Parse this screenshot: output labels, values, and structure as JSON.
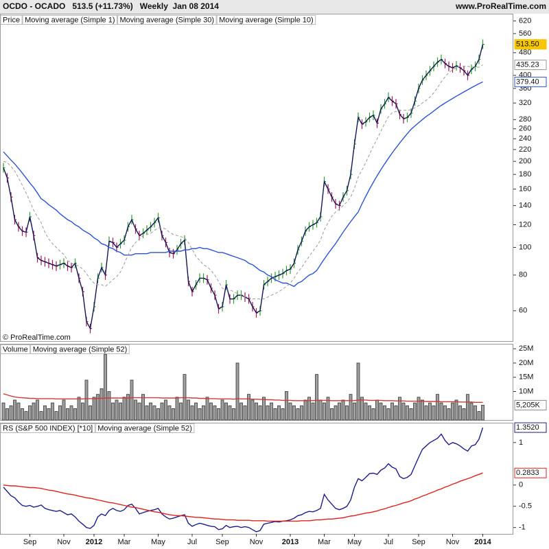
{
  "header": {
    "title": "OCDO - OCADO   513.5 (+11.73%)   Weekly  Jan 08 2014",
    "site": "www.ProRealTime.com",
    "copyright": "© ProRealTime.com"
  },
  "chart_data": [
    {
      "type": "line",
      "label": "Price",
      "log_scale": true,
      "ylim": [
        47,
        650
      ],
      "yticks": [
        60,
        80,
        100,
        120,
        140,
        160,
        180,
        200,
        220,
        240,
        260,
        280,
        320,
        360,
        400,
        480,
        560,
        620
      ],
      "series": [
        {
          "name": "Moving average (Simple 1)",
          "color": "#14145a",
          "marks": "price_bars",
          "up_color": "#2a9d2a",
          "down_color": "#a3174f",
          "badge_fill": "#f7c600",
          "last_label": "513.50",
          "values": [
            190,
            175,
            150,
            125,
            118,
            114,
            113,
            128,
            110,
            92,
            90,
            89,
            88,
            87,
            86,
            87,
            88,
            86,
            85,
            88,
            78,
            70,
            55,
            52,
            62,
            78,
            85,
            80,
            105,
            104,
            100,
            103,
            106,
            118,
            125,
            116,
            110,
            112,
            115,
            118,
            122,
            127,
            110,
            104,
            96,
            95,
            98,
            103,
            106,
            76,
            70,
            74,
            78,
            78,
            77,
            72,
            68,
            61,
            62,
            74,
            66,
            66,
            68,
            68,
            67,
            66,
            62,
            59,
            60,
            74,
            76,
            78,
            79,
            80,
            81,
            83,
            84,
            88,
            98,
            105,
            114,
            118,
            120,
            122,
            128,
            170,
            160,
            150,
            142,
            140,
            150,
            158,
            180,
            230,
            285,
            270,
            275,
            285,
            290,
            272,
            305,
            318,
            335,
            325,
            318,
            292,
            282,
            285,
            295,
            325,
            360,
            385,
            400,
            415,
            430,
            445,
            455,
            440,
            430,
            425,
            432,
            425,
            415,
            400,
            420,
            430,
            455,
            513.5
          ]
        },
        {
          "name": "Moving average (Simple 30)",
          "color": "#2a52d8",
          "last_label": "379.40",
          "values": [
            216,
            209,
            202,
            196,
            189,
            182,
            175,
            168,
            162,
            155,
            148,
            145,
            141,
            138,
            135,
            131,
            128,
            125,
            123,
            120,
            118,
            115,
            113,
            111,
            108,
            106,
            103,
            102,
            100,
            99,
            97,
            96,
            94,
            94,
            94,
            95,
            95,
            95,
            95,
            96,
            96,
            96,
            96,
            96,
            97,
            97,
            97,
            97,
            98,
            98,
            99,
            99,
            100,
            99,
            99,
            98,
            97,
            96,
            96,
            95,
            94,
            93,
            92,
            91,
            90,
            88,
            87,
            85,
            83,
            82,
            80,
            79,
            77,
            76,
            75,
            75,
            74,
            73,
            75,
            76,
            78,
            80,
            81,
            83,
            87,
            91,
            95,
            99,
            103,
            108,
            113,
            118,
            123,
            128,
            133,
            142,
            151,
            160,
            169,
            178,
            187,
            196,
            205,
            214,
            223,
            232,
            241,
            250,
            259,
            266,
            273,
            280,
            287,
            293,
            300,
            307,
            314,
            320,
            326,
            332,
            338,
            344,
            350,
            356,
            362,
            368,
            374,
            379.4
          ]
        },
        {
          "name": "Moving average (Simple 10)",
          "color": "#9a9a9a",
          "dashed": true,
          "last_label": "435.23",
          "values": [
            200,
            198,
            192,
            185,
            175,
            165,
            155,
            145,
            135,
            128,
            122,
            113,
            107,
            103,
            100,
            97,
            94.5,
            90,
            88,
            87,
            86,
            84,
            81,
            77.5,
            75,
            74,
            74,
            73,
            75,
            77,
            79,
            82,
            87.5,
            94,
            100,
            104,
            107,
            110,
            111,
            112,
            114.5,
            117,
            117,
            116,
            113,
            111,
            110,
            109,
            108,
            104,
            98.5,
            93,
            90,
            87,
            85.5,
            83,
            80,
            76,
            72,
            71,
            71,
            70,
            69,
            68,
            67,
            67,
            66,
            66,
            66,
            66,
            67,
            68,
            69,
            70,
            71.5,
            73,
            75,
            78,
            82,
            85,
            89,
            93,
            97,
            101,
            106,
            115,
            122,
            128.5,
            133,
            136,
            140,
            144,
            150,
            161,
            176.5,
            186.5,
            198,
            211.5,
            226,
            239.5,
            255,
            271,
            286.5,
            296,
            299,
            301.5,
            302,
            302,
            303,
            308,
            313.5,
            320,
            327,
            336,
            347,
            362,
            379.5,
            395,
            408.5,
            418.5,
            426,
            430,
            431,
            430,
            429,
            427,
            427,
            435.23
          ]
        }
      ]
    },
    {
      "type": "bar",
      "ylim": [
        0,
        26.5
      ],
      "yticks": [
        {
          "value": 10,
          "label": "10M"
        },
        {
          "value": 15,
          "label": "15M"
        },
        {
          "value": 20,
          "label": "20M"
        },
        {
          "value": 25,
          "label": "25M"
        }
      ],
      "series": [
        {
          "name": "Volume",
          "color": "#8a8a8a",
          "last_label": "5,205K",
          "values": [
            6,
            4,
            5,
            7,
            6,
            4,
            3,
            5,
            6,
            7,
            3,
            5,
            4,
            6,
            3,
            5,
            7,
            4,
            5,
            4,
            8,
            6,
            14,
            5,
            8,
            9,
            11,
            23,
            10,
            6,
            7,
            6,
            8,
            9,
            14,
            7,
            6,
            9,
            5,
            6,
            5,
            4,
            6,
            7,
            5,
            4,
            8,
            6,
            16,
            7,
            5,
            6,
            4,
            5,
            8,
            6,
            5,
            4,
            7,
            6,
            5,
            4,
            20,
            6,
            5,
            9,
            7,
            6,
            5,
            8,
            5,
            6,
            4,
            5,
            4,
            10,
            6,
            5,
            4,
            5,
            7,
            8,
            6,
            16,
            7,
            6,
            8,
            4,
            5,
            6,
            7,
            5,
            9,
            6,
            20,
            8,
            6,
            5,
            4,
            7,
            6,
            5,
            4,
            6,
            5,
            8,
            6,
            5,
            4,
            6,
            8,
            7,
            5,
            6,
            5,
            9,
            6,
            5,
            4,
            6,
            7,
            5,
            4,
            9,
            6,
            5,
            3,
            5.205
          ]
        },
        {
          "name": "Moving average (Simple 52)",
          "type": "line",
          "color": "#d03a3a",
          "values": [
            9.2,
            8.8,
            8.4,
            8.1,
            7.9,
            7.8,
            7.7,
            7.6,
            7.6,
            7.5,
            7.5,
            7.5,
            7.5,
            7.5,
            7.4,
            7.4,
            7.4,
            7.4,
            7.4,
            7.4,
            7.4,
            7.4,
            7.5,
            7.5,
            7.5,
            7.6,
            7.6,
            7.7,
            7.7,
            7.7,
            7.7,
            7.7,
            7.7,
            7.7,
            7.8,
            7.8,
            7.8,
            7.8,
            7.8,
            7.8,
            7.8,
            7.8,
            7.7,
            7.7,
            7.7,
            7.7,
            7.7,
            7.8,
            7.8,
            7.8,
            7.7,
            7.7,
            7.6,
            7.6,
            7.5,
            7.5,
            7.5,
            7.4,
            7.4,
            7.4,
            7.4,
            7.3,
            7.5,
            7.4,
            7.4,
            7.4,
            7.3,
            7.3,
            7.2,
            7.2,
            7.1,
            7.1,
            7.0,
            7.0,
            6.9,
            6.9,
            6.9,
            6.8,
            6.8,
            6.8,
            6.8,
            6.8,
            6.8,
            6.9,
            6.9,
            6.9,
            6.9,
            6.8,
            6.8,
            6.8,
            6.8,
            6.8,
            6.8,
            6.8,
            7.0,
            7.0,
            7.0,
            6.9,
            6.9,
            6.9,
            6.9,
            6.8,
            6.8,
            6.8,
            6.7,
            6.7,
            6.7,
            6.6,
            6.6,
            6.6,
            6.6,
            6.6,
            6.5,
            6.5,
            6.5,
            6.5,
            6.4,
            6.4,
            6.4,
            6.4,
            6.4,
            6.3,
            6.3,
            6.3,
            6.3,
            6.2,
            6.2,
            6.2
          ]
        }
      ]
    },
    {
      "type": "line",
      "ylim": [
        -1.15,
        1.45
      ],
      "yticks": [
        1,
        0,
        -0.5,
        -1
      ],
      "categories": [
        null,
        null,
        null,
        null,
        null,
        null,
        null,
        "Sep",
        null,
        null,
        null,
        null,
        null,
        null,
        null,
        null,
        "Nov",
        null,
        null,
        null,
        null,
        null,
        null,
        null,
        "2012",
        null,
        null,
        null,
        null,
        null,
        null,
        null,
        "Mar",
        null,
        null,
        null,
        null,
        null,
        null,
        null,
        null,
        "May",
        null,
        null,
        null,
        null,
        null,
        null,
        null,
        null,
        "Jul",
        null,
        null,
        null,
        null,
        null,
        null,
        null,
        "Sep",
        null,
        null,
        null,
        null,
        null,
        null,
        null,
        null,
        "Nov",
        null,
        null,
        null,
        null,
        null,
        null,
        null,
        null,
        "2013",
        null,
        null,
        null,
        null,
        null,
        null,
        null,
        null,
        "Mar",
        null,
        null,
        null,
        null,
        null,
        null,
        null,
        "May",
        null,
        null,
        null,
        null,
        null,
        null,
        null,
        null,
        "Jul",
        null,
        null,
        null,
        null,
        null,
        null,
        null,
        "Sep",
        null,
        null,
        null,
        null,
        null,
        null,
        null,
        null,
        "Nov",
        null,
        null,
        null,
        null,
        null,
        null,
        null,
        "2014"
      ],
      "series": [
        {
          "name": "RS (S&P 500 INDEX) [*10]",
          "color": "#1c1c8c",
          "last_label": "1.3520",
          "values": [
            -0.05,
            -0.15,
            -0.25,
            -0.3,
            -0.4,
            -0.48,
            -0.5,
            -0.48,
            -0.52,
            -0.5,
            -0.47,
            -0.55,
            -0.58,
            -0.6,
            -0.62,
            -0.6,
            -0.65,
            -0.7,
            -0.68,
            -0.75,
            -0.85,
            -0.92,
            -1.0,
            -1.02,
            -0.95,
            -0.75,
            -0.68,
            -0.72,
            -0.6,
            -0.55,
            -0.6,
            -0.62,
            -0.58,
            -0.48,
            -0.45,
            -0.55,
            -0.68,
            -0.65,
            -0.62,
            -0.6,
            -0.58,
            -0.55,
            -0.68,
            -0.75,
            -0.8,
            -0.78,
            -0.75,
            -0.72,
            -0.7,
            -0.9,
            -0.97,
            -0.93,
            -0.9,
            -0.92,
            -0.95,
            -0.97,
            -0.98,
            -1.05,
            -1.03,
            -0.95,
            -1.0,
            -0.98,
            -0.97,
            -1.0,
            -0.98,
            -1.0,
            -1.05,
            -1.1,
            -1.07,
            -0.92,
            -0.9,
            -0.88,
            -0.86,
            -0.87,
            -0.85,
            -0.84,
            -0.82,
            -0.78,
            -0.72,
            -0.7,
            -0.65,
            -0.62,
            -0.63,
            -0.6,
            -0.55,
            -0.22,
            -0.35,
            -0.45,
            -0.55,
            -0.58,
            -0.55,
            -0.5,
            -0.35,
            -0.05,
            0.15,
            0.1,
            0.18,
            0.27,
            0.28,
            0.25,
            0.35,
            0.4,
            0.5,
            0.42,
            0.38,
            0.2,
            0.15,
            0.18,
            0.25,
            0.45,
            0.65,
            0.84,
            0.92,
            1.0,
            1.05,
            1.1,
            1.2,
            1.05,
            0.95,
            1.0,
            0.97,
            0.92,
            0.85,
            0.8,
            0.92,
            0.95,
            1.08,
            1.352
          ]
        },
        {
          "name": "Moving average (Simple 52)",
          "color": "#e0201b",
          "last_label": "0.2833",
          "values": [
            0,
            -0.01,
            -0.02,
            -0.02,
            -0.03,
            -0.04,
            -0.05,
            -0.06,
            -0.06,
            -0.07,
            -0.08,
            -0.1,
            -0.12,
            -0.13,
            -0.15,
            -0.17,
            -0.19,
            -0.21,
            -0.22,
            -0.24,
            -0.26,
            -0.28,
            -0.3,
            -0.31,
            -0.33,
            -0.35,
            -0.37,
            -0.39,
            -0.41,
            -0.42,
            -0.44,
            -0.46,
            -0.48,
            -0.5,
            -0.52,
            -0.53,
            -0.55,
            -0.57,
            -0.59,
            -0.61,
            -0.63,
            -0.64,
            -0.66,
            -0.68,
            -0.7,
            -0.71,
            -0.72,
            -0.72,
            -0.73,
            -0.74,
            -0.75,
            -0.76,
            -0.76,
            -0.77,
            -0.78,
            -0.79,
            -0.8,
            -0.8,
            -0.81,
            -0.82,
            -0.82,
            -0.82,
            -0.83,
            -0.83,
            -0.83,
            -0.83,
            -0.84,
            -0.84,
            -0.84,
            -0.84,
            -0.85,
            -0.85,
            -0.85,
            -0.85,
            -0.85,
            -0.85,
            -0.85,
            -0.85,
            -0.85,
            -0.84,
            -0.84,
            -0.84,
            -0.83,
            -0.82,
            -0.82,
            -0.81,
            -0.8,
            -0.8,
            -0.79,
            -0.78,
            -0.77,
            -0.75,
            -0.73,
            -0.72,
            -0.7,
            -0.68,
            -0.66,
            -0.65,
            -0.63,
            -0.61,
            -0.58,
            -0.56,
            -0.53,
            -0.5,
            -0.48,
            -0.45,
            -0.42,
            -0.4,
            -0.37,
            -0.33,
            -0.3,
            -0.26,
            -0.23,
            -0.19,
            -0.16,
            -0.12,
            -0.09,
            -0.05,
            -0.02,
            0.02,
            0.05,
            0.09,
            0.12,
            0.15,
            0.18,
            0.22,
            0.25,
            0.2833
          ]
        }
      ]
    }
  ]
}
